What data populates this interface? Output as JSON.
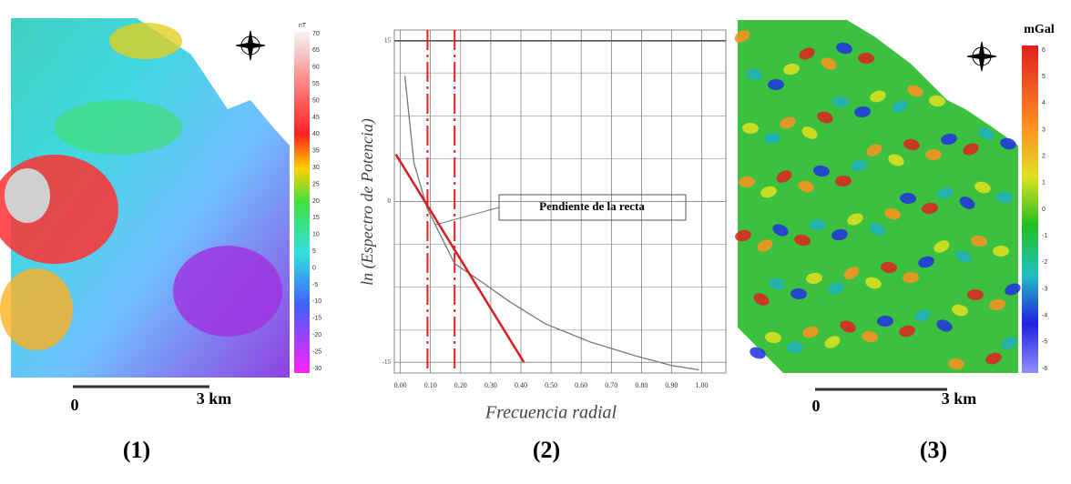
{
  "panels": {
    "map1": {
      "unit": "nT",
      "colorbar": [
        "70",
        "65",
        "60",
        "55",
        "50",
        "45",
        "40",
        "35",
        "30",
        "25",
        "20",
        "15",
        "10",
        "5",
        "0",
        "-5",
        "-10",
        "-15",
        "-20",
        "-25",
        "-30"
      ],
      "scale": [
        "0",
        "3 km"
      ],
      "label": "(1)"
    },
    "map3": {
      "unit": "mGal",
      "colorbar": [
        "6",
        "5",
        "4",
        "3",
        "2",
        "1",
        "0",
        "-1",
        "-2",
        "-3",
        "-4",
        "-5",
        "-6"
      ],
      "scale": [
        "0",
        "3 km"
      ],
      "label": "(3)"
    },
    "spectrum_label": "(2)"
  },
  "chart_data": {
    "type": "line",
    "xlabel": "Frecuencia radial",
    "ylabel": "ln (Espectro de Potencia)",
    "annotation": "Pendiente de la recta",
    "xlim": [
      -0.02,
      1.08
    ],
    "ylim": [
      -16,
      16
    ],
    "xticks": [
      {
        "value": 0,
        "label": "0.00"
      },
      {
        "value": 0.1,
        "label": "0.10"
      },
      {
        "value": 0.2,
        "label": "0.20"
      },
      {
        "value": 0.3,
        "label": "0.30"
      },
      {
        "value": 0.4,
        "label": "0.40"
      },
      {
        "value": 0.5,
        "label": "0.50"
      },
      {
        "value": 0.6,
        "label": "0.60"
      },
      {
        "value": 0.7,
        "label": "0.70"
      },
      {
        "value": 0.8,
        "label": "0.80"
      },
      {
        "value": 0.9,
        "label": "0.90"
      },
      {
        "value": 1,
        "label": "1.00"
      }
    ],
    "yticks": [
      -15,
      0,
      15
    ],
    "grid": true,
    "series": [
      {
        "color": "#777777",
        "x": [
          0.015,
          0.045,
          0.09,
          0.18,
          0.27,
          0.36,
          0.48,
          0.63,
          0.78,
          0.9,
          0.99
        ],
        "values": [
          11.7,
          3.6,
          -0.7,
          -5.8,
          -7.5,
          -9.3,
          -11.4,
          -13.1,
          -14.4,
          -15.3,
          -15.7
        ]
      },
      {
        "color": "#d42020",
        "x": [
          -0.015,
          0.41
        ],
        "values": [
          4.4,
          -15
        ]
      }
    ],
    "vlines": [
      0.09,
      0.18
    ],
    "vline_color": "#e02020"
  }
}
